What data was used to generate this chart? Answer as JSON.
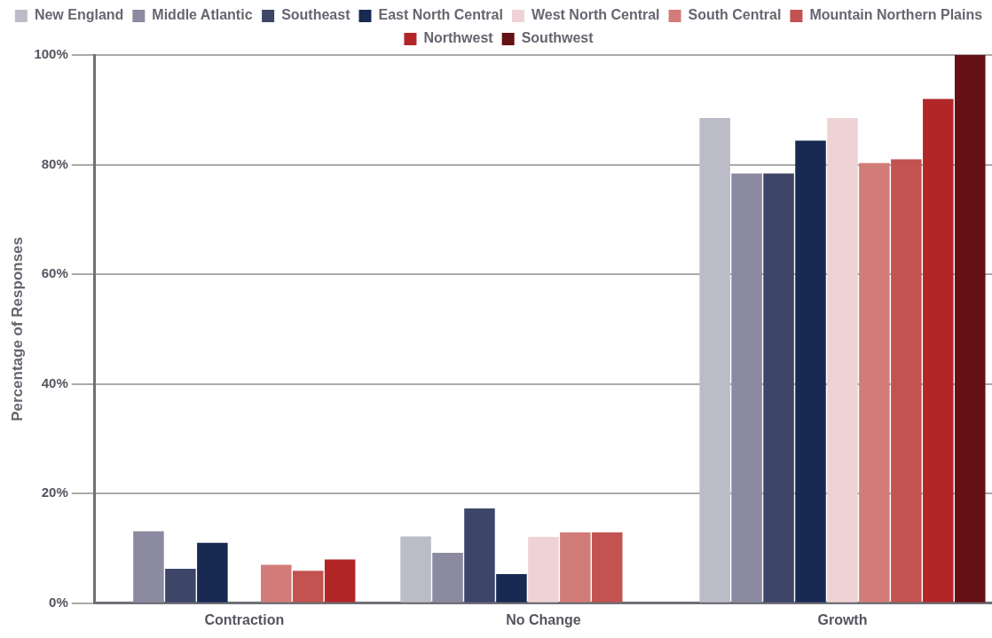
{
  "chart_data": {
    "type": "bar",
    "ylabel": "Percentage of Responses",
    "categories": [
      "Contraction",
      "No Change",
      "Growth"
    ],
    "series": [
      {
        "name": "New England",
        "color": "#bcbcc8",
        "values": [
          null,
          12.2,
          88.5
        ]
      },
      {
        "name": "Middle Atlantic",
        "color": "#8c8aa0",
        "values": [
          13.1,
          9.2,
          78.4
        ]
      },
      {
        "name": "Southeast",
        "color": "#3d4668",
        "values": [
          6.3,
          17.3,
          78.4
        ]
      },
      {
        "name": "East North Central",
        "color": "#182a52",
        "values": [
          11,
          5.3,
          84.4
        ]
      },
      {
        "name": "West North Central",
        "color": "#efd3d4",
        "values": [
          0,
          12.1,
          88.5
        ]
      },
      {
        "name": "South Central",
        "color": "#d27c79",
        "values": [
          7,
          12.9,
          80.3
        ]
      },
      {
        "name": "Mountain Northern Plains",
        "color": "#c25351",
        "values": [
          5.9,
          12.9,
          81
        ]
      },
      {
        "name": "Northwest",
        "color": "#b22628",
        "values": [
          8,
          null,
          92
        ]
      },
      {
        "name": "Southwest",
        "color": "#651014",
        "values": [
          null,
          null,
          100
        ]
      }
    ],
    "ylim": [
      0,
      100
    ],
    "yticks": [
      {
        "value": 0,
        "label": "0%"
      },
      {
        "value": 20,
        "label": "20%"
      },
      {
        "value": 40,
        "label": "40%"
      },
      {
        "value": 60,
        "label": "60%"
      },
      {
        "value": 80,
        "label": "80%"
      },
      {
        "value": 100,
        "label": "100%"
      }
    ],
    "grid": "y",
    "legend": "top"
  }
}
